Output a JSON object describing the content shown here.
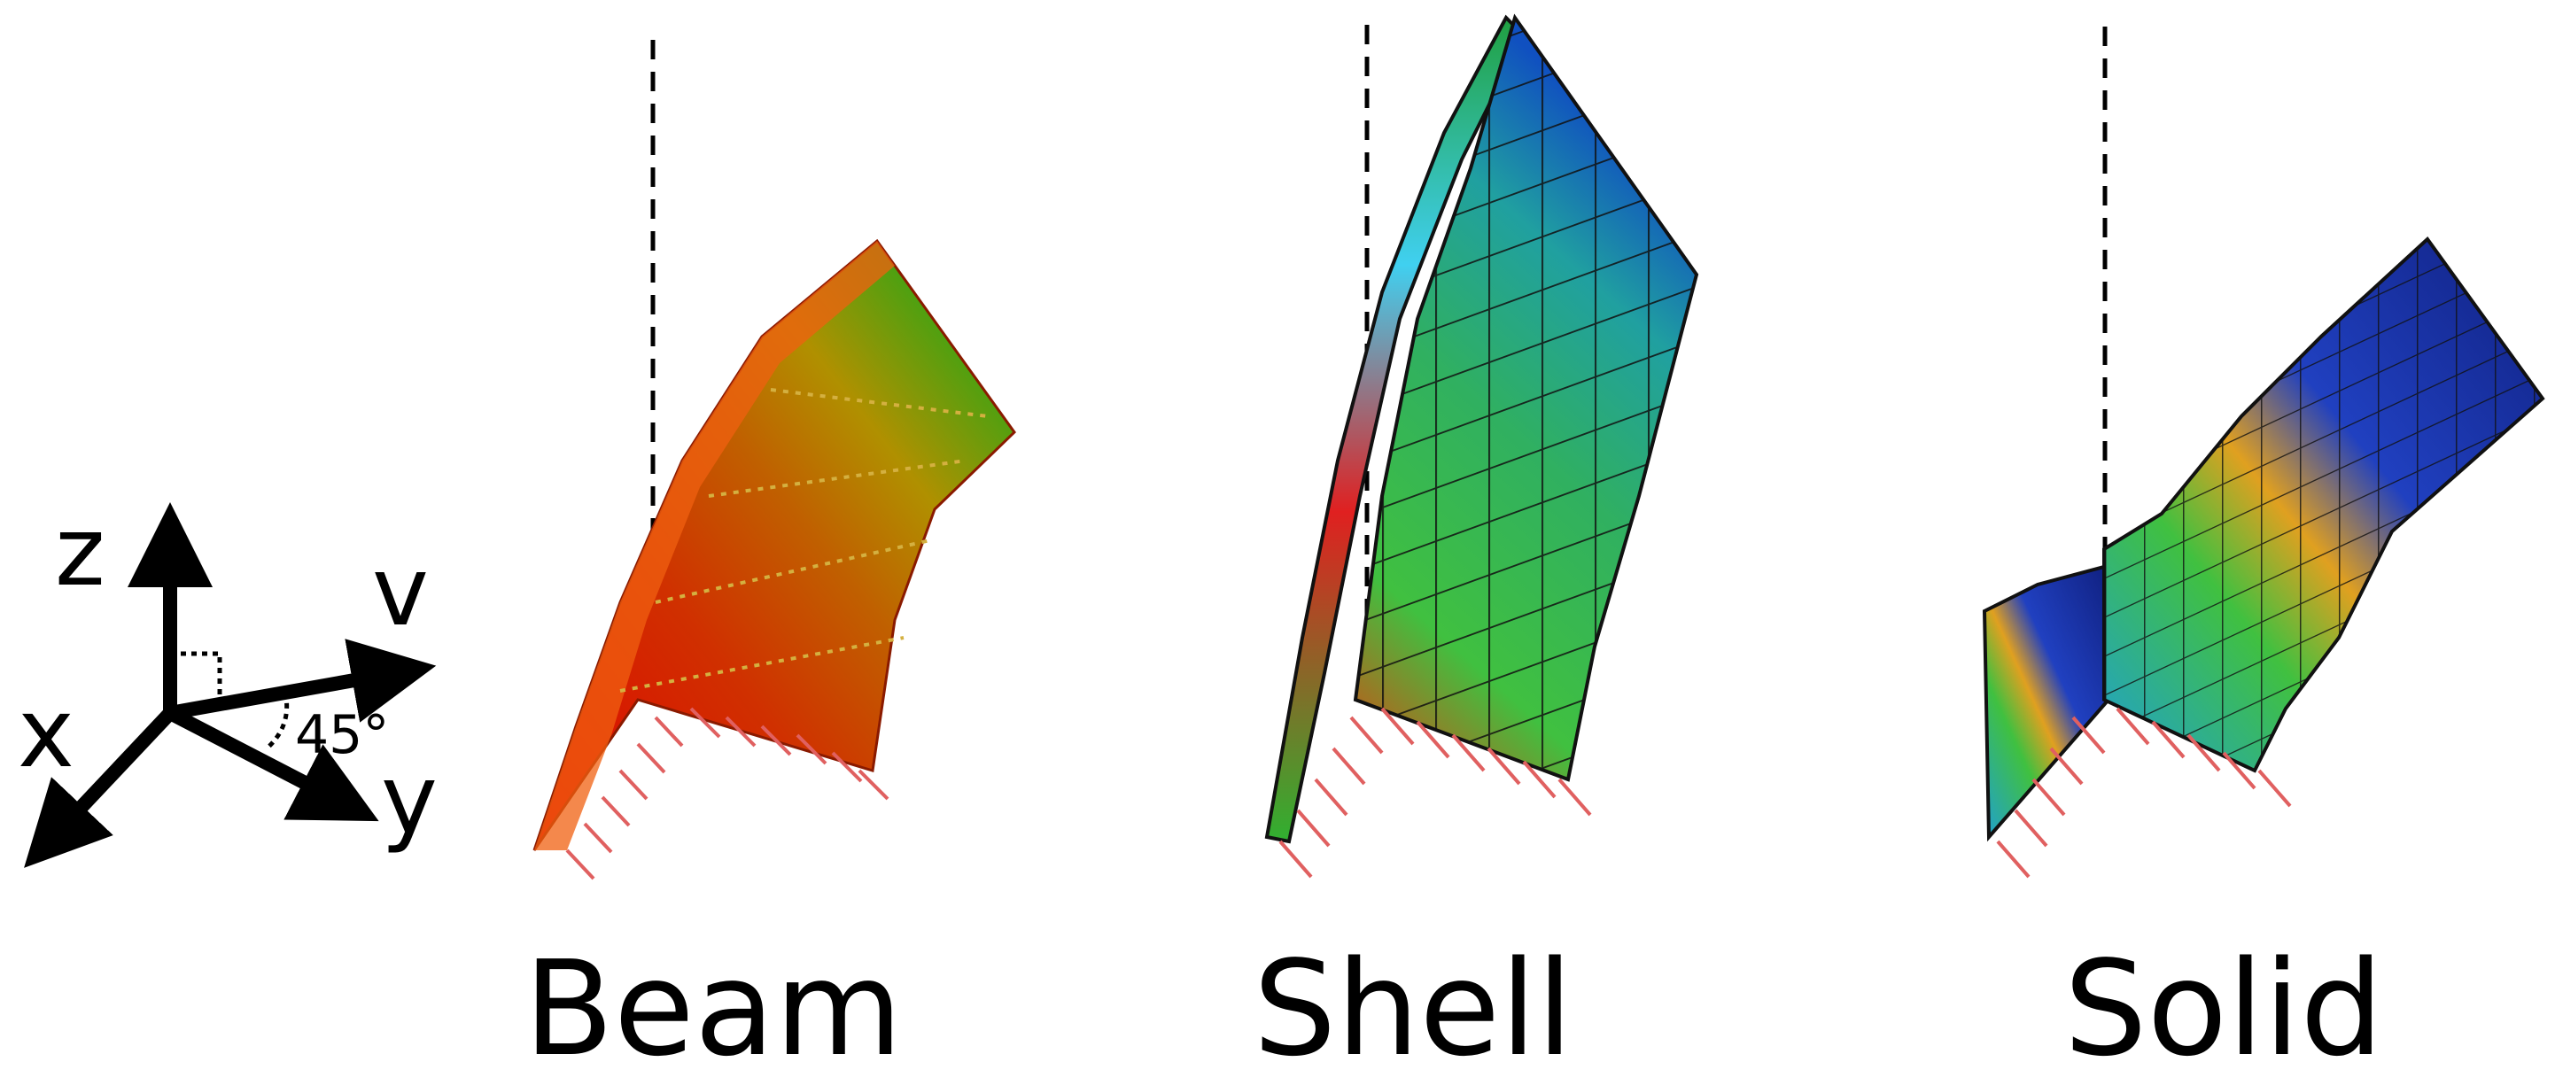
{
  "axes": {
    "z": "z",
    "v": "v",
    "x": "x",
    "y": "y",
    "angle": "45°"
  },
  "panels": [
    {
      "name": "beam",
      "label": "Beam"
    },
    {
      "name": "shell",
      "label": "Shell"
    },
    {
      "name": "solid",
      "label": "Solid"
    }
  ],
  "colors": {
    "constraint_hatch": "#e06060",
    "mesh_line": "#111111",
    "axis": "#000000"
  }
}
